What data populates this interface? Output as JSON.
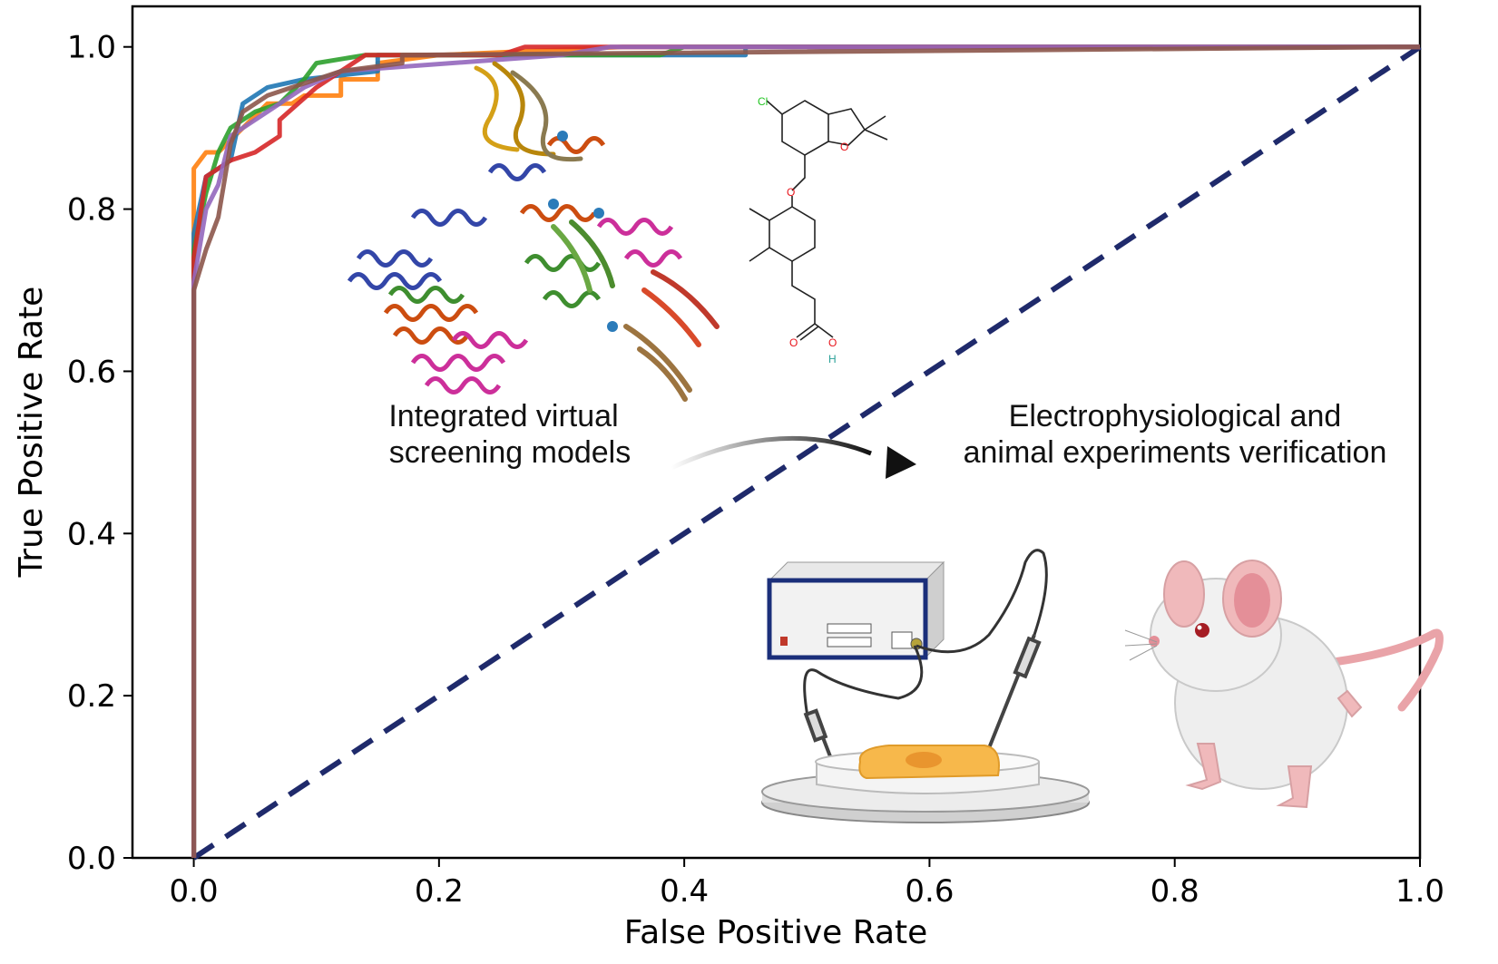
{
  "chart_data": {
    "type": "line",
    "xlabel": "False Positive Rate",
    "ylabel": "True Positive Rate",
    "xlim": [
      -0.05,
      1.0
    ],
    "ylim": [
      0.0,
      1.05
    ],
    "x_ticks": [
      "0.0",
      "0.2",
      "0.4",
      "0.6",
      "0.8",
      "1.0"
    ],
    "y_ticks": [
      "0.0",
      "0.2",
      "0.4",
      "0.6",
      "0.8",
      "1.0"
    ],
    "grid": false,
    "legend": "none",
    "series": [
      {
        "color": "#ff7f0e",
        "points": [
          [
            0,
            0
          ],
          [
            0,
            0.85
          ],
          [
            0.01,
            0.87
          ],
          [
            0.02,
            0.87
          ],
          [
            0.04,
            0.9
          ],
          [
            0.06,
            0.93
          ],
          [
            0.08,
            0.93
          ],
          [
            0.09,
            0.94
          ],
          [
            0.12,
            0.94
          ],
          [
            0.12,
            0.96
          ],
          [
            0.15,
            0.96
          ],
          [
            0.15,
            0.98
          ],
          [
            0.2,
            0.99
          ],
          [
            0.35,
            1.0
          ],
          [
            1.0,
            1.0
          ]
        ]
      },
      {
        "color": "#1f77b4",
        "points": [
          [
            0,
            0
          ],
          [
            0,
            0.77
          ],
          [
            0.01,
            0.84
          ],
          [
            0.03,
            0.86
          ],
          [
            0.04,
            0.93
          ],
          [
            0.06,
            0.95
          ],
          [
            0.09,
            0.96
          ],
          [
            0.15,
            0.97
          ],
          [
            0.15,
            0.99
          ],
          [
            0.45,
            0.99
          ],
          [
            0.45,
            1.0
          ],
          [
            1.0,
            1.0
          ]
        ]
      },
      {
        "color": "#2ca02c",
        "points": [
          [
            0,
            0
          ],
          [
            0,
            0.75
          ],
          [
            0.01,
            0.82
          ],
          [
            0.02,
            0.87
          ],
          [
            0.03,
            0.9
          ],
          [
            0.05,
            0.92
          ],
          [
            0.07,
            0.93
          ],
          [
            0.09,
            0.96
          ],
          [
            0.1,
            0.98
          ],
          [
            0.14,
            0.99
          ],
          [
            0.38,
            0.99
          ],
          [
            0.4,
            1.0
          ],
          [
            1.0,
            1.0
          ]
        ]
      },
      {
        "color": "#d62728",
        "points": [
          [
            0,
            0
          ],
          [
            0,
            0.74
          ],
          [
            0.01,
            0.84
          ],
          [
            0.03,
            0.86
          ],
          [
            0.05,
            0.87
          ],
          [
            0.07,
            0.89
          ],
          [
            0.07,
            0.91
          ],
          [
            0.1,
            0.95
          ],
          [
            0.12,
            0.97
          ],
          [
            0.14,
            0.99
          ],
          [
            0.25,
            0.99
          ],
          [
            0.27,
            1.0
          ],
          [
            1.0,
            1.0
          ]
        ]
      },
      {
        "color": "#9467bd",
        "points": [
          [
            0,
            0
          ],
          [
            0,
            0.71
          ],
          [
            0.01,
            0.8
          ],
          [
            0.02,
            0.83
          ],
          [
            0.03,
            0.89
          ],
          [
            0.05,
            0.91
          ],
          [
            0.09,
            0.95
          ],
          [
            0.12,
            0.97
          ],
          [
            0.3,
            0.99
          ],
          [
            0.34,
            1.0
          ],
          [
            1.0,
            1.0
          ]
        ]
      },
      {
        "color": "#8c564b",
        "points": [
          [
            0,
            0
          ],
          [
            0,
            0.7
          ],
          [
            0.01,
            0.75
          ],
          [
            0.02,
            0.79
          ],
          [
            0.03,
            0.88
          ],
          [
            0.04,
            0.92
          ],
          [
            0.06,
            0.94
          ],
          [
            0.08,
            0.95
          ],
          [
            0.1,
            0.96
          ],
          [
            0.12,
            0.97
          ],
          [
            0.17,
            0.98
          ],
          [
            0.17,
            0.99
          ],
          [
            1.0,
            1.0
          ]
        ]
      }
    ],
    "reference_line": {
      "color": "#1f2a6b",
      "style": "dashed",
      "points": [
        [
          0,
          0
        ],
        [
          1,
          1
        ]
      ]
    },
    "annotations": {
      "left_lines": [
        "Integrated virtual",
        "screening models"
      ],
      "right_lines": [
        "Electrophysiological  and",
        "animal experiments verification"
      ]
    },
    "molecule_atoms": [
      "Cl",
      "O",
      "O",
      "O",
      "O",
      "H"
    ],
    "molecule_atom_colors": {
      "Cl": "#22c522",
      "O": "#e8141b",
      "H": "#2aa198"
    },
    "illustrations": [
      "protein-structure",
      "chemical-structure",
      "electrophysiology-rig",
      "mouse"
    ]
  }
}
